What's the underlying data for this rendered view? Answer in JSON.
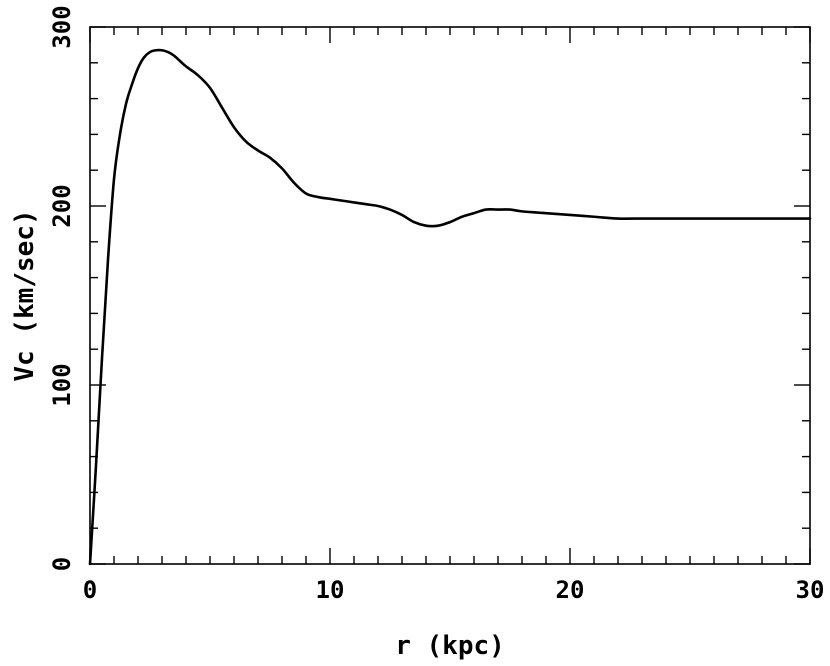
{
  "chart_data": {
    "type": "line",
    "title": "",
    "xlabel": "r (kpc)",
    "ylabel": "Vc (km/sec)",
    "xlim": [
      0,
      30
    ],
    "ylim": [
      0,
      300
    ],
    "x_ticks_major": [
      0,
      10,
      20,
      30
    ],
    "x_tick_labels": [
      "0",
      "10",
      "20",
      "30"
    ],
    "x_ticks_minor_step": 1,
    "y_ticks_major": [
      0,
      100,
      200,
      300
    ],
    "y_tick_labels": [
      "0",
      "100",
      "200",
      "300"
    ],
    "y_ticks_minor_step": 20,
    "grid": false,
    "line_color": "#000000",
    "series": [
      {
        "x": [
          0,
          0.25,
          0.5,
          0.75,
          1.0,
          1.25,
          1.5,
          1.75,
          2.0,
          2.25,
          2.5,
          2.75,
          3.0,
          3.25,
          3.5,
          3.75,
          4.0,
          4.5,
          5.0,
          5.5,
          6.0,
          6.5,
          7.0,
          7.5,
          8.0,
          8.5,
          9.0,
          9.5,
          10.0,
          10.5,
          11.0,
          11.5,
          12.0,
          12.5,
          13.0,
          13.5,
          14.0,
          14.5,
          15.0,
          15.5,
          16.0,
          16.5,
          17.0,
          17.5,
          18.0,
          19.0,
          20.0,
          21.0,
          22.0,
          23.0,
          24.0,
          25.0,
          26.0,
          27.0,
          28.0,
          29.0,
          30.0
        ],
        "y": [
          0,
          55,
          115,
          170,
          215,
          240,
          257,
          268,
          277,
          283,
          286,
          287,
          287,
          286,
          284,
          281,
          278,
          273,
          266,
          255,
          244,
          236,
          231,
          227,
          221,
          213,
          207,
          205,
          204,
          203,
          202,
          201,
          200,
          198,
          195,
          191,
          189,
          189,
          191,
          194,
          196,
          198,
          198,
          198,
          197,
          196,
          195,
          194,
          193,
          193,
          193,
          193,
          193,
          193,
          193,
          193,
          193
        ]
      }
    ]
  }
}
